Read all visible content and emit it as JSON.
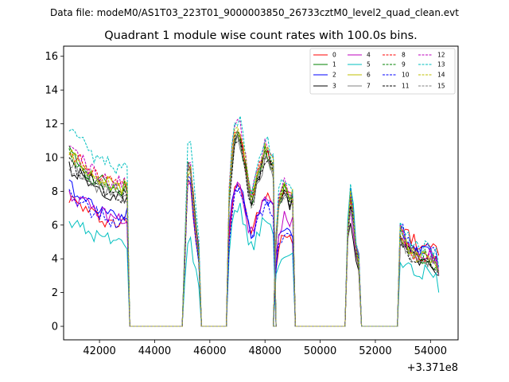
{
  "figure": {
    "suptitle": "Data file: modeM0/AS1T03_223T01_9000003850_26733cztM0_level2_quad_clean.evt"
  },
  "chart_data": {
    "type": "line",
    "title": "Quadrant 1 module wise count rates with 100.0s bins.",
    "xlabel": "",
    "ylabel": "",
    "x_offset_label": "+3.371e8",
    "xlim": [
      40700,
      55000
    ],
    "ylim": [
      -0.8,
      16.6
    ],
    "x_ticks": [
      42000,
      44000,
      46000,
      48000,
      50000,
      52000,
      54000
    ],
    "x_tick_labels": [
      "42000",
      "44000",
      "46000",
      "48000",
      "50000",
      "52000",
      "54000"
    ],
    "y_ticks": [
      0,
      2,
      4,
      6,
      8,
      10,
      12,
      14,
      16
    ],
    "y_tick_labels": [
      "0",
      "2",
      "4",
      "6",
      "8",
      "10",
      "12",
      "14",
      "16"
    ],
    "legend": {
      "position": "top-right",
      "columns": 4
    },
    "segments": [
      {
        "start": 40900,
        "end": 43000,
        "shape": [
          1.0,
          0.97,
          0.96,
          0.94,
          0.93,
          0.92,
          0.9,
          0.88,
          0.87,
          0.86,
          0.85,
          0.84,
          0.83,
          0.82,
          0.82,
          0.8,
          0.81,
          0.79,
          0.8,
          0.78,
          0.8,
          0.79
        ]
      },
      {
        "start": 45100,
        "end": 45600,
        "shape": [
          0.5,
          1.0,
          0.95,
          0.8,
          0.6,
          0.45
        ]
      },
      {
        "start": 46700,
        "end": 48300,
        "shape": [
          0.65,
          0.85,
          0.97,
          1.0,
          0.98,
          0.9,
          0.82,
          0.72,
          0.66,
          0.68,
          0.74,
          0.8,
          0.85,
          0.9,
          0.88,
          0.85,
          0.82
        ]
      },
      {
        "start": 48400,
        "end": 49000,
        "shape": [
          0.6,
          0.85,
          0.9,
          0.95,
          0.92,
          0.88,
          0.9
        ]
      },
      {
        "start": 51000,
        "end": 51400,
        "shape": [
          0.75,
          1.0,
          0.85,
          0.6,
          0.5
        ]
      },
      {
        "start": 52900,
        "end": 54300,
        "shape": [
          1.0,
          0.95,
          0.9,
          0.86,
          0.82,
          0.8,
          0.78,
          0.77,
          0.76,
          0.78,
          0.76,
          0.74,
          0.72,
          0.7,
          0.68
        ]
      }
    ],
    "series": [
      {
        "name": "0",
        "color": "#ff0000",
        "dash": false,
        "levels": [
          7.7,
          8.5,
          8.6,
          5.7,
          7.9,
          6.3,
          4.2
        ]
      },
      {
        "name": "1",
        "color": "#008000",
        "dash": false,
        "levels": [
          10.3,
          9.5,
          11.2,
          8.6,
          7.5,
          5.3,
          3.1
        ]
      },
      {
        "name": "2",
        "color": "#0000ff",
        "dash": false,
        "levels": [
          8.4,
          8.9,
          8.4,
          6.3,
          7.8,
          5.7,
          3.0
        ]
      },
      {
        "name": "3",
        "color": "#000000",
        "dash": false,
        "levels": [
          9.6,
          9.4,
          11.4,
          8.3,
          6.4,
          5.0,
          3.0
        ]
      },
      {
        "name": "4",
        "color": "#bf00bf",
        "dash": false,
        "levels": [
          8.0,
          8.6,
          8.3,
          6.8,
          7.0,
          5.8,
          3.2
        ]
      },
      {
        "name": "5",
        "color": "#00bfbf",
        "dash": false,
        "levels": [
          6.3,
          5.2,
          7.1,
          4.5,
          8.1,
          4.1,
          2.0
        ]
      },
      {
        "name": "6",
        "color": "#bfbf00",
        "dash": false,
        "levels": [
          10.5,
          9.3,
          11.6,
          8.8,
          7.6,
          5.4,
          3.2
        ]
      },
      {
        "name": "7",
        "color": "#808080",
        "dash": false,
        "levels": [
          9.8,
          9.2,
          11.0,
          8.6,
          7.4,
          5.2,
          3.1
        ]
      },
      {
        "name": "8",
        "color": "#ff0000",
        "dash": true,
        "levels": [
          10.6,
          9.4,
          11.8,
          8.6,
          7.6,
          5.3,
          3.0
        ]
      },
      {
        "name": "9",
        "color": "#008000",
        "dash": true,
        "levels": [
          10.2,
          9.6,
          11.5,
          8.7,
          7.7,
          5.4,
          3.2
        ]
      },
      {
        "name": "10",
        "color": "#0000ff",
        "dash": true,
        "levels": [
          7.9,
          8.6,
          8.0,
          6.0,
          7.9,
          5.9,
          3.1
        ]
      },
      {
        "name": "11",
        "color": "#000000",
        "dash": true,
        "levels": [
          9.9,
          9.3,
          11.1,
          8.5,
          7.5,
          5.2,
          3.1
        ]
      },
      {
        "name": "12",
        "color": "#bf00bf",
        "dash": true,
        "levels": [
          10.7,
          9.8,
          12.1,
          8.9,
          8.0,
          5.6,
          3.3
        ]
      },
      {
        "name": "13",
        "color": "#00bfbf",
        "dash": true,
        "levels": [
          11.7,
          11.1,
          12.3,
          9.2,
          8.4,
          6.1,
          3.5
        ]
      },
      {
        "name": "14",
        "color": "#bfbf00",
        "dash": true,
        "levels": [
          10.4,
          9.5,
          11.9,
          8.8,
          7.8,
          5.5,
          3.2
        ]
      },
      {
        "name": "15",
        "color": "#808080",
        "dash": true,
        "levels": [
          9.7,
          9.2,
          11.3,
          8.4,
          7.3,
          5.1,
          3.0
        ]
      }
    ]
  }
}
